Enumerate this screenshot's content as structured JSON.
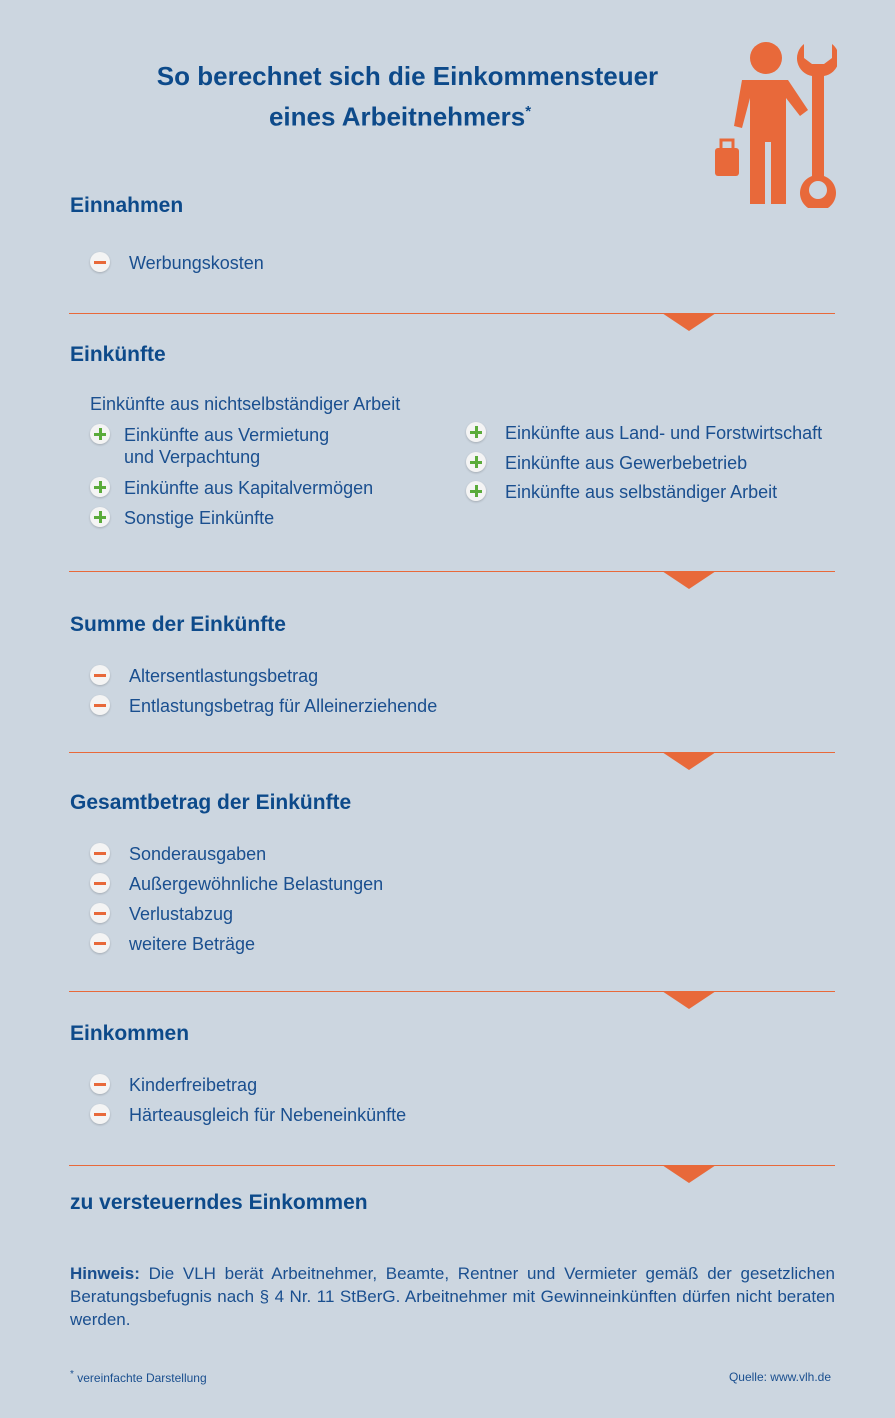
{
  "title": {
    "line1": "So berechnet sich die Einkommensteuer",
    "line2": "eines Arbeitnehmers",
    "asterisk": "*"
  },
  "colors": {
    "background": "#ccd6e0",
    "heading": "#0d4a8a",
    "accent": "#e8693a",
    "plus": "#5aab3a"
  },
  "icon": "worker-with-wrench-icon",
  "sections": [
    {
      "heading": "Einnahmen",
      "items": [
        {
          "sign": "minus",
          "label": "Werbungskosten"
        }
      ]
    },
    {
      "heading": "Einkünfte",
      "intro": "Einkünfte aus nichtselbständiger Arbeit",
      "left": [
        {
          "sign": "plus",
          "label": "Einkünfte aus Vermietung",
          "label2": "und Verpachtung"
        },
        {
          "sign": "plus",
          "label": "Einkünfte aus Kapitalvermögen"
        },
        {
          "sign": "plus",
          "label": "Sonstige Einkünfte"
        }
      ],
      "right": [
        {
          "sign": "plus",
          "label": "Einkünfte aus Land- und Forstwirtschaft"
        },
        {
          "sign": "plus",
          "label": "Einkünfte aus Gewerbebetrieb"
        },
        {
          "sign": "plus",
          "label": "Einkünfte aus selbständiger Arbeit"
        }
      ]
    },
    {
      "heading": "Summe der Einkünfte",
      "items": [
        {
          "sign": "minus",
          "label": "Altersentlastungsbetrag"
        },
        {
          "sign": "minus",
          "label": "Entlastungsbetrag für Alleinerziehende"
        }
      ]
    },
    {
      "heading": "Gesamtbetrag der Einkünfte",
      "items": [
        {
          "sign": "minus",
          "label": "Sonderausgaben"
        },
        {
          "sign": "minus",
          "label": "Außergewöhnliche Belastungen"
        },
        {
          "sign": "minus",
          "label": "Verlustabzug"
        },
        {
          "sign": "minus",
          "label": "weitere Beträge"
        }
      ]
    },
    {
      "heading": "Einkommen",
      "items": [
        {
          "sign": "minus",
          "label": "Kinderfreibetrag"
        },
        {
          "sign": "minus",
          "label": "Härteausgleich für Nebeneinkünfte"
        }
      ]
    },
    {
      "heading": "zu versteuerndes Einkommen"
    }
  ],
  "note": {
    "label": "Hinweis:",
    "text": "Die VLH berät Arbeitnehmer, Beamte, Rentner und Vermieter gemäß der gesetzlichen Beratungsbefugnis nach § 4 Nr. 11 StBerG. Arbeitnehmer mit Gewinneinkünften dürfen nicht beraten werden."
  },
  "footer": {
    "asterisk": "*",
    "footnote": "vereinfachte Darstellung",
    "source": "Quelle: www.vlh.de"
  }
}
